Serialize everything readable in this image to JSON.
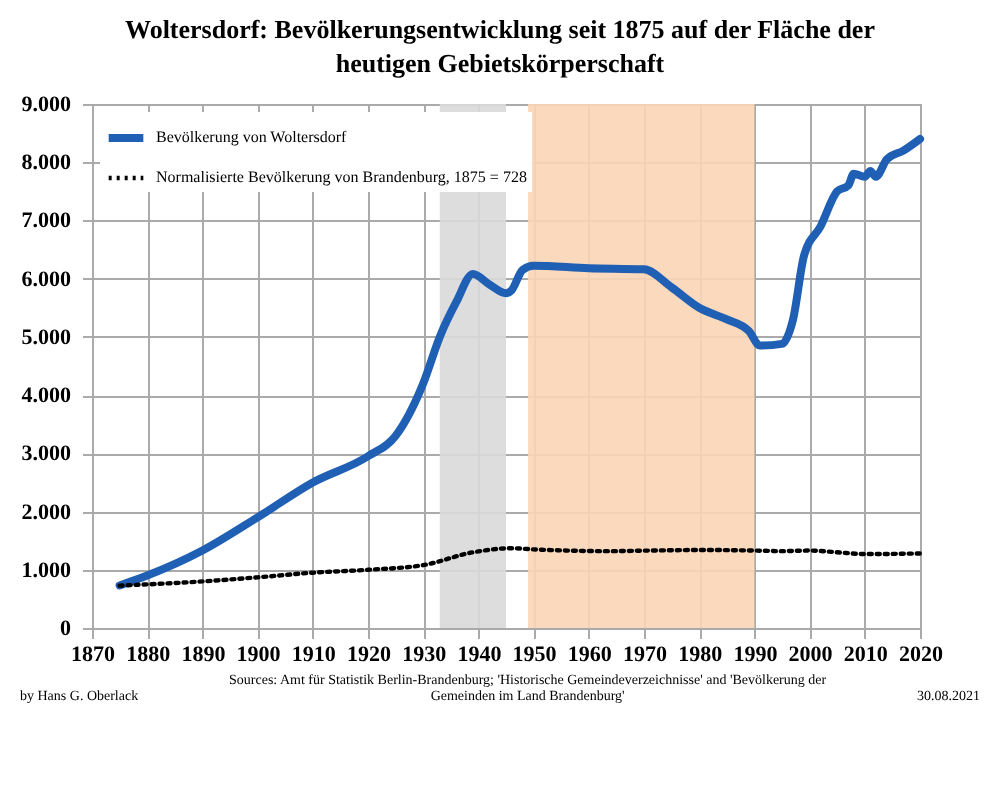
{
  "chart_data": {
    "type": "line",
    "title": "Woltersdorf: Bevölkerungsentwicklung seit 1875 auf der Fläche der heutigen Gebietskörperschaft",
    "xlim": [
      1870,
      2020
    ],
    "xticks": [
      1870,
      1880,
      1890,
      1900,
      1910,
      1920,
      1930,
      1940,
      1950,
      1960,
      1970,
      1980,
      1990,
      2000,
      2010,
      2020
    ],
    "ylim": [
      0,
      9000
    ],
    "yticks": [
      0,
      {
        "value": 1000,
        "label": "1.000"
      },
      {
        "value": 2000,
        "label": "2.000"
      },
      {
        "value": 3000,
        "label": "3.000"
      },
      {
        "value": 4000,
        "label": "4.000"
      },
      {
        "value": 5000,
        "label": "5.000"
      },
      {
        "value": 6000,
        "label": "6.000"
      },
      {
        "value": 7000,
        "label": "7.000"
      },
      {
        "value": 8000,
        "label": "8.000"
      },
      {
        "value": 9000,
        "label": "9.000"
      }
    ],
    "grid": true,
    "legend": "top left",
    "bands": [
      {
        "axis": "x",
        "from": 1933,
        "to": 1945,
        "color": "#d9d9d9"
      },
      {
        "axis": "x",
        "from": 1949,
        "to": 1990,
        "color": "#fbd5b5"
      }
    ],
    "series": [
      {
        "name": "Bevölkerung von Woltersdorf",
        "color": "#1f5fb4",
        "line_style": "solid",
        "x": [
          1875,
          1880,
          1890,
          1900,
          1910,
          1920,
          1925,
          1930,
          1933,
          1936,
          1939,
          1942,
          1945,
          1946,
          1948,
          1950,
          1960,
          1970,
          1975,
          1980,
          1985,
          1989,
          1991,
          1995,
          1997,
          1999,
          2002,
          2005,
          2007,
          2008,
          2010,
          2011,
          2012,
          2014,
          2017,
          2020
        ],
        "values": [
          730,
          900,
          1330,
          1900,
          2500,
          2950,
          3300,
          4200,
          5000,
          5600,
          6080,
          5900,
          5750,
          5800,
          6150,
          6220,
          6180,
          6160,
          5850,
          5500,
          5300,
          5100,
          4850,
          4880,
          5300,
          6400,
          6900,
          7500,
          7600,
          7800,
          7750,
          7850,
          7750,
          8050,
          8200,
          8400
        ]
      },
      {
        "name": "Normalisierte Bevölkerung von Brandenburg, 1875 = 728",
        "color": "#000000",
        "line_style": "dotted",
        "x": [
          1875,
          1890,
          1900,
          1910,
          1920,
          1930,
          1939,
          1946,
          1950,
          1964,
          1971,
          1981,
          1990,
          1995,
          2000,
          2005,
          2010,
          2020
        ],
        "values": [
          728,
          800,
          870,
          950,
          1000,
          1080,
          1300,
          1370,
          1350,
          1320,
          1330,
          1340,
          1330,
          1320,
          1330,
          1300,
          1270,
          1280
        ]
      }
    ],
    "annotations": [
      "by Hans G. Oberlack",
      "Sources: Amt für Statistik Berlin-Brandenburg; 'Historische Gemeindeverzeichnisse' and 'Bevölkerung der Gemeinden im Land Brandenburg'",
      "30.08.2021"
    ]
  }
}
